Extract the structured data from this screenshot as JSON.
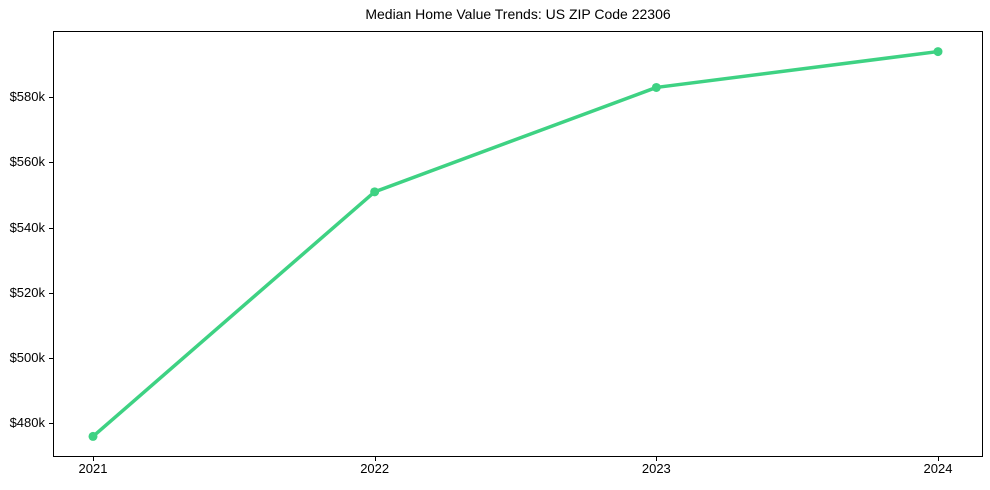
{
  "figure": {
    "title": "Median Home Value Trends: US ZIP Code 22306"
  },
  "chart_data": {
    "type": "line",
    "title": "Median Home Value Trends: US ZIP Code 22306",
    "categories": [
      "2021",
      "2022",
      "2023",
      "2024"
    ],
    "series": [
      {
        "name": "Median home value",
        "values": [
          476000,
          551000,
          583000,
          594000
        ],
        "color": "#3ed283",
        "marker": "circle",
        "line_width": 3.5,
        "marker_radius": 4.5
      }
    ],
    "xlabel": "",
    "ylabel": "",
    "ylim": [
      470000,
      600000
    ],
    "yticks": [
      {
        "value": 480000,
        "label": "$480k"
      },
      {
        "value": 500000,
        "label": "$500k"
      },
      {
        "value": 520000,
        "label": "$520k"
      },
      {
        "value": 540000,
        "label": "$540k"
      },
      {
        "value": 560000,
        "label": "$560k"
      },
      {
        "value": 580000,
        "label": "$580k"
      }
    ],
    "grid": false,
    "legend_position": "none",
    "plot_border_color": "#000000",
    "background_color": "#ffffff",
    "text_color": "#000000"
  }
}
